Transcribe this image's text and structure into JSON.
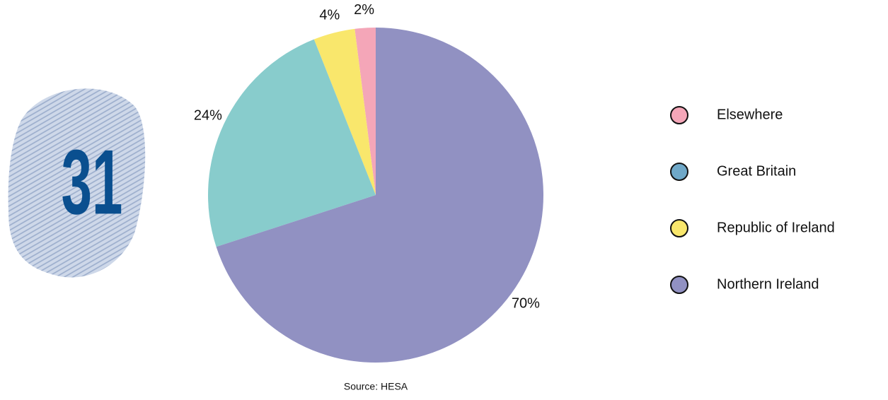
{
  "chart_data": {
    "type": "pie",
    "badge": "31",
    "categories": [
      "Elsewhere",
      "Republic of Ireland",
      "Great Britain",
      "Northern Ireland"
    ],
    "values": [
      2,
      4,
      24,
      70
    ],
    "value_labels": [
      "2%",
      "4%",
      "24%",
      "70%"
    ],
    "colors": [
      "#f4a6b8",
      "#f9e76c",
      "#88cccc",
      "#9191c2"
    ],
    "direction": "counterclockwise",
    "legend": [
      {
        "label": "Elsewhere",
        "color": "#f4a6b8"
      },
      {
        "label": "Great Britain",
        "color": "#6fa8c8"
      },
      {
        "label": "Republic of Ireland",
        "color": "#f9e76c"
      },
      {
        "label": "Northern Ireland",
        "color": "#9191c2"
      }
    ],
    "source": "Source: HESA"
  }
}
